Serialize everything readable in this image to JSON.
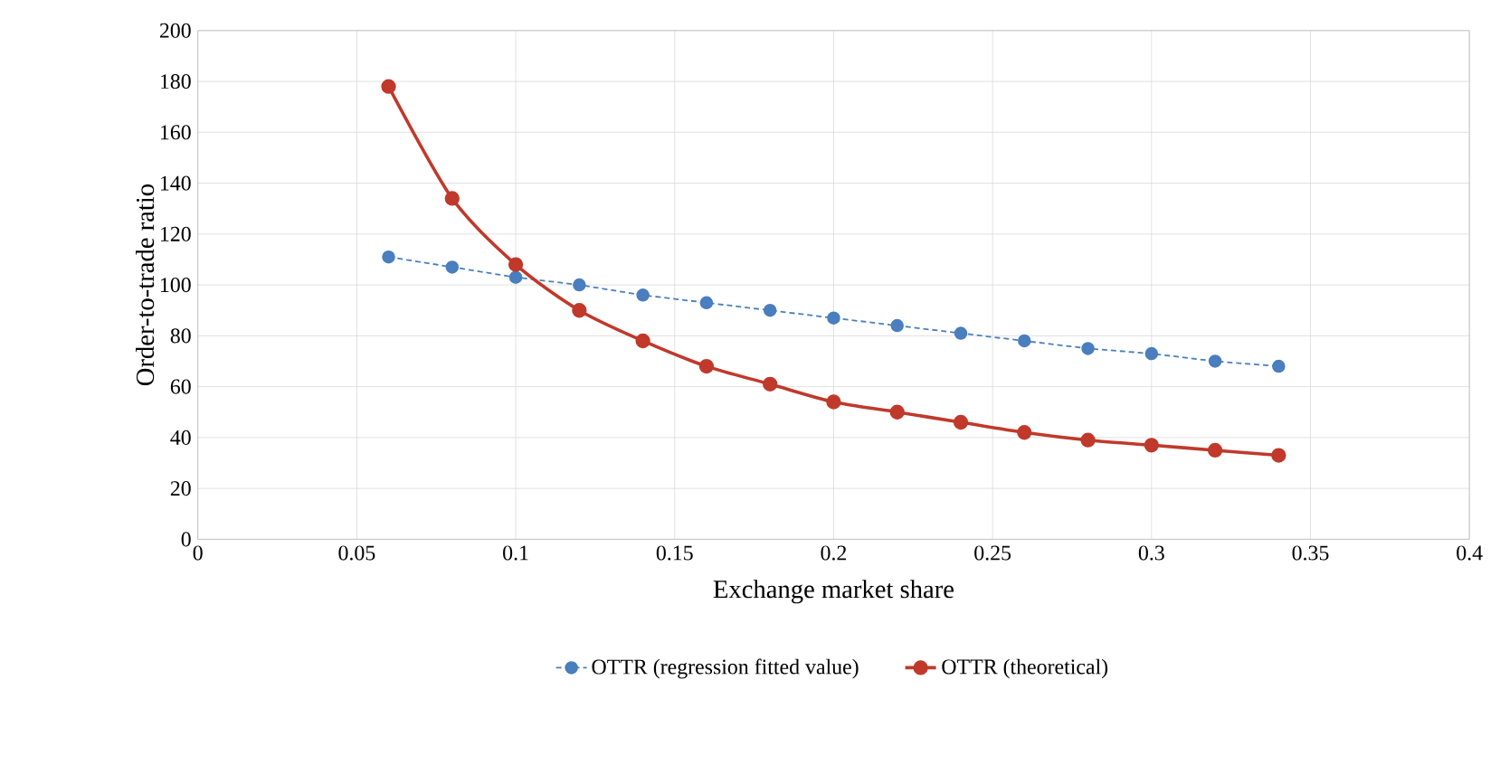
{
  "chart_data": {
    "type": "line",
    "xlabel": "Exchange market share",
    "ylabel": "Order-to-trade ratio",
    "x": [
      0.06,
      0.08,
      0.1,
      0.12,
      0.14,
      0.16,
      0.18,
      0.2,
      0.22,
      0.24,
      0.26,
      0.28,
      0.3,
      0.32,
      0.34
    ],
    "series": [
      {
        "name": "OTTR (regression fitted value)",
        "color": "#4a7ebf",
        "line_style": "dashed",
        "values": [
          111,
          107,
          103,
          100,
          96,
          93,
          90,
          87,
          84,
          81,
          78,
          75,
          73,
          70,
          68
        ]
      },
      {
        "name": "OTTR (theoretical)",
        "color": "#c0392b",
        "line_style": "solid",
        "values": [
          178,
          134,
          108,
          90,
          78,
          68,
          61,
          54,
          50,
          46,
          42,
          39,
          37,
          35,
          33
        ]
      }
    ],
    "xlim": [
      0,
      0.4
    ],
    "xticks": [
      0,
      0.05,
      0.1,
      0.15,
      0.2,
      0.25,
      0.3,
      0.35,
      0.4
    ],
    "ylim": [
      0,
      200
    ],
    "yticks": [
      0,
      20,
      40,
      60,
      80,
      100,
      120,
      140,
      160,
      180,
      200
    ],
    "grid": true,
    "legend": "bottom",
    "marker": "circle"
  }
}
